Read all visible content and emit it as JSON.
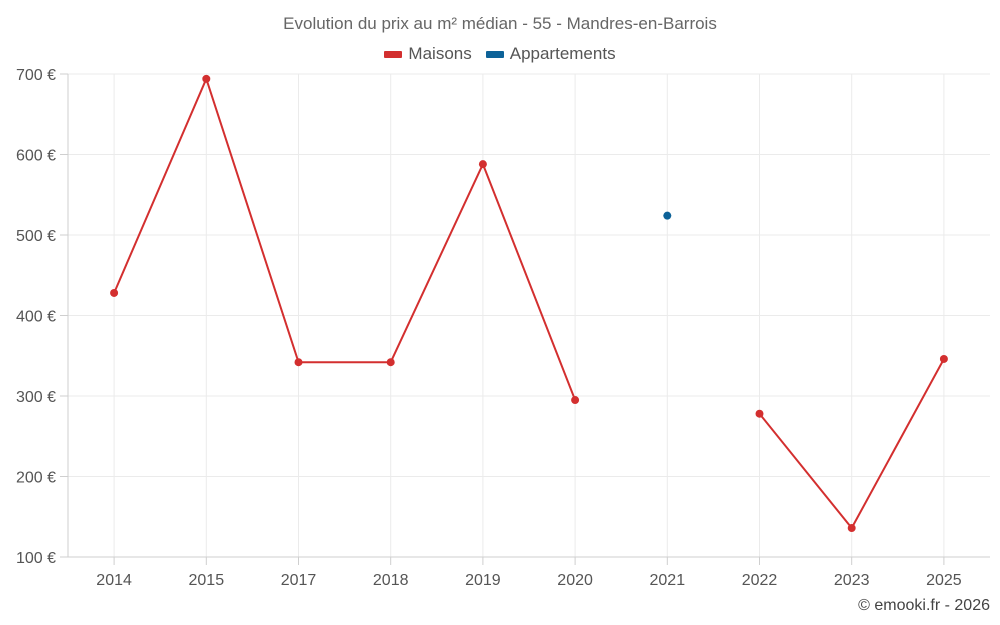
{
  "chart_data": {
    "type": "line",
    "title": "Evolution du prix au m² médian - 55 - Mandres-en-Barrois",
    "categories": [
      "2014",
      "2015",
      "2017",
      "2018",
      "2019",
      "2020",
      "2021",
      "2022",
      "2023",
      "2025"
    ],
    "y_tick_labels": [
      "100 €",
      "200 €",
      "300 €",
      "400 €",
      "500 €",
      "600 €",
      "700 €"
    ],
    "y_ticks": [
      100,
      200,
      300,
      400,
      500,
      600,
      700
    ],
    "ylim": [
      100,
      700
    ],
    "grid": true,
    "legend_position": "top-center",
    "series": [
      {
        "name": "Maisons",
        "color": "#d32f2f",
        "values": [
          428,
          694,
          342,
          342,
          588,
          295,
          null,
          278,
          136,
          346
        ]
      },
      {
        "name": "Appartements",
        "color": "#0d6298",
        "values": [
          null,
          null,
          null,
          null,
          null,
          null,
          524,
          null,
          null,
          null
        ]
      }
    ]
  },
  "credit": "© emooki.fr - 2026"
}
